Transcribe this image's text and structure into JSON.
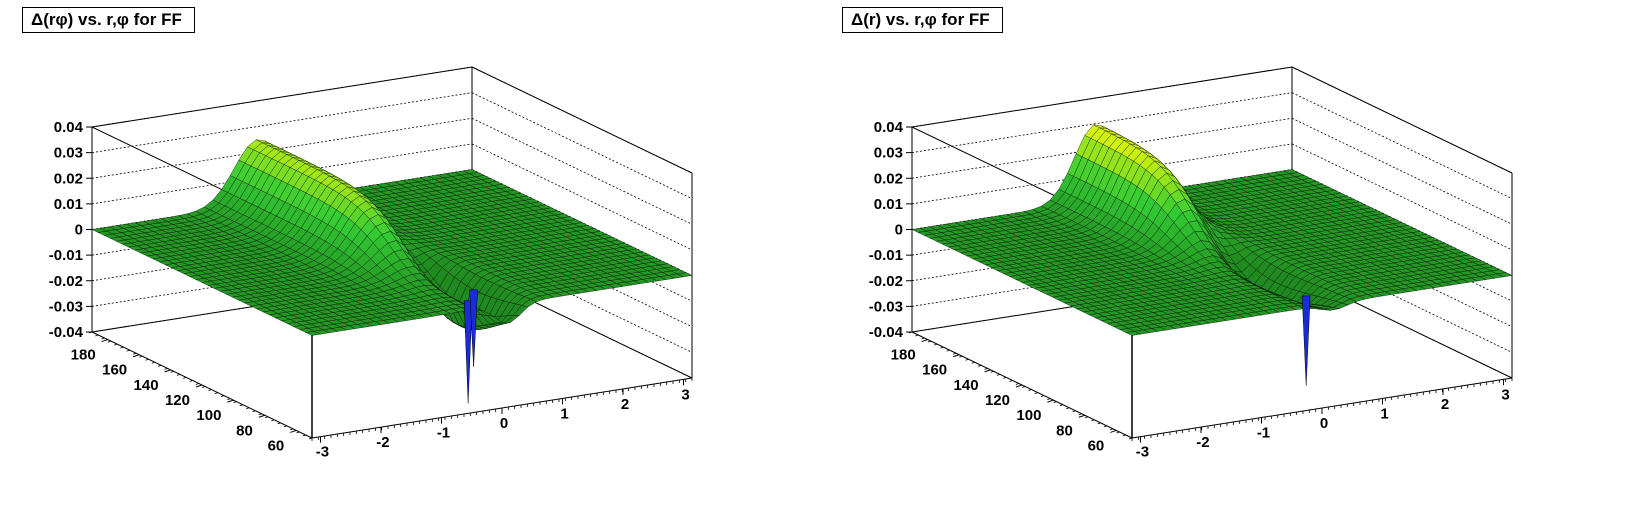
{
  "colors": {
    "surface_low": "#1f8a1f",
    "surface_mid": "#33cc33",
    "surface_high": "#ffff00",
    "dip": "#1a2bd9",
    "mesh": "#000000"
  },
  "chart_data": [
    {
      "type": "surface",
      "title": "Δ(rφ) vs. r,φ for FF",
      "zlim": [
        -0.04,
        0.04
      ],
      "z_ticks": [
        "0.04",
        "0.03",
        "0.02",
        "0.01",
        "0",
        "-0.01",
        "-0.02",
        "-0.03",
        "-0.04"
      ],
      "x_ticks": [
        "-3",
        "-2",
        "-1",
        "0",
        "1",
        "2",
        "3"
      ],
      "y_ticks": [
        "60",
        "80",
        "100",
        "120",
        "140",
        "160",
        "180"
      ],
      "xlim": [
        -3.14,
        3.14
      ],
      "ylim": [
        50,
        190
      ],
      "features": {
        "ridge": {
          "phi_center": -0.4,
          "r_center": 155,
          "amplitude": 0.025,
          "phi_width": 0.55,
          "r_width": 55
        },
        "trough": {
          "phi_center": 0.1,
          "r_center": 85,
          "amplitude": -0.02,
          "phi_width": 0.3,
          "r_width": 35
        },
        "dips": [
          {
            "phi": -0.3,
            "r": 60,
            "depth": -0.04
          },
          {
            "phi": 0.05,
            "r": 70,
            "depth": -0.03
          }
        ]
      }
    },
    {
      "type": "surface",
      "title": "Δ(r) vs. r,φ for FF",
      "zlim": [
        -0.04,
        0.04
      ],
      "z_ticks": [
        "0.04",
        "0.03",
        "0.02",
        "0.01",
        "0",
        "-0.01",
        "-0.02",
        "-0.03",
        "-0.04"
      ],
      "x_ticks": [
        "-3",
        "-2",
        "-1",
        "0",
        "1",
        "2",
        "3"
      ],
      "y_ticks": [
        "60",
        "80",
        "100",
        "120",
        "140",
        "160",
        "180"
      ],
      "xlim": [
        -3.14,
        3.14
      ],
      "ylim": [
        50,
        190
      ],
      "features": {
        "ridge": {
          "phi_center": -0.1,
          "r_center": 170,
          "amplitude": 0.03,
          "phi_width": 0.5,
          "r_width": 45
        },
        "trough": {
          "phi_center": 0.2,
          "r_center": 100,
          "amplitude": -0.012,
          "phi_width": 0.3,
          "r_width": 40
        },
        "dips": [
          {
            "phi": 0.05,
            "r": 62,
            "depth": -0.035
          }
        ]
      }
    }
  ]
}
